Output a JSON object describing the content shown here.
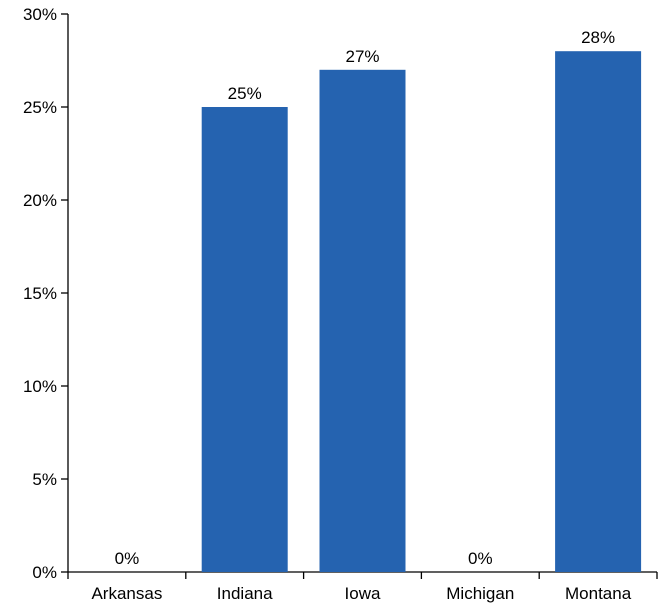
{
  "chart_data": {
    "type": "bar",
    "title": "",
    "xlabel": "",
    "ylabel": "",
    "categories": [
      "Arkansas",
      "Indiana",
      "Iowa",
      "Michigan",
      "Montana"
    ],
    "values": [
      0,
      25,
      27,
      0,
      28
    ],
    "value_labels": [
      "0%",
      "25%",
      "27%",
      "0%",
      "28%"
    ],
    "ylim": [
      0,
      30
    ],
    "yticks": [
      0,
      5,
      10,
      15,
      20,
      25,
      30
    ],
    "ytick_labels": [
      "0%",
      "5%",
      "10%",
      "15%",
      "20%",
      "25%",
      "30%"
    ],
    "grid": false,
    "legend": "none",
    "bar_color": "#2563b0"
  }
}
